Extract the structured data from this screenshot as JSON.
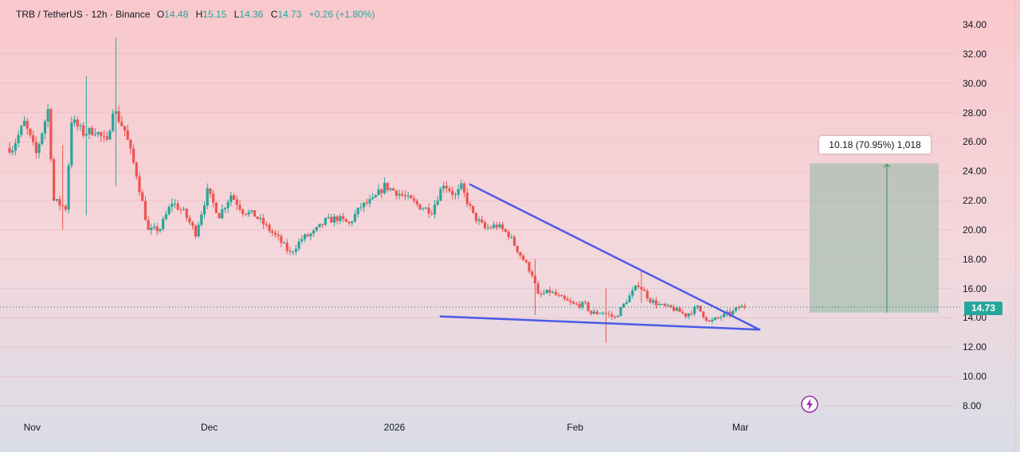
{
  "header": {
    "symbol": "TRB / TetherUS · 12h · Binance",
    "open_label": "O",
    "open": "14.48",
    "high_label": "H",
    "high": "15.15",
    "low_label": "L",
    "low": "14.36",
    "close_label": "C",
    "close": "14.73",
    "change": "+0.26 (+1.80%)"
  },
  "price_axis": [
    "34.00",
    "32.00",
    "30.00",
    "28.00",
    "26.00",
    "24.00",
    "22.00",
    "20.00",
    "18.00",
    "16.00",
    "14.00",
    "12.00",
    "10.00",
    "8.00"
  ],
  "time_axis": [
    "Nov",
    "Dec",
    "2026",
    "Feb",
    "Mar"
  ],
  "current_price": "14.73",
  "measure": {
    "label": "10.18 (70.95%) 1,018"
  },
  "colors": {
    "up": "#26a69a",
    "down": "#ef5350",
    "trendline": "#4a5be6",
    "target_box": "#8fb8a4",
    "bg_top": "#f9c9cd",
    "bg_bottom": "#d9dde6"
  },
  "icons": {
    "bolt": "bolt-icon"
  },
  "chart_data": {
    "type": "candlestick",
    "interval": "12h",
    "ylim": [
      7.2,
      35.2
    ],
    "x_ticks": [
      "Nov",
      "Dec",
      "2026",
      "Feb",
      "Mar"
    ],
    "last_close": 14.73,
    "close_path": [
      [
        "2025-10-29",
        25.6
      ],
      [
        "2025-10-31",
        27.3
      ],
      [
        "2025-11-02",
        25.2
      ],
      [
        "2025-11-04",
        28.2
      ],
      [
        "2025-11-05",
        22.0
      ],
      [
        "2025-11-07",
        21.5
      ],
      [
        "2025-11-08",
        27.5
      ],
      [
        "2025-11-10",
        26.6
      ],
      [
        "2025-11-12",
        26.8
      ],
      [
        "2025-11-14",
        25.9
      ],
      [
        "2025-11-15",
        28.3
      ],
      [
        "2025-11-17",
        26.8
      ],
      [
        "2025-11-19",
        23.8
      ],
      [
        "2025-11-21",
        19.9
      ],
      [
        "2025-11-23",
        20.1
      ],
      [
        "2025-11-25",
        21.9
      ],
      [
        "2025-11-27",
        21.2
      ],
      [
        "2025-11-29",
        19.8
      ],
      [
        "2025-12-01",
        22.6
      ],
      [
        "2025-12-03",
        21.0
      ],
      [
        "2025-12-05",
        22.4
      ],
      [
        "2025-12-07",
        21.3
      ],
      [
        "2025-12-09",
        21.0
      ],
      [
        "2025-12-11",
        20.2
      ],
      [
        "2025-12-13",
        19.4
      ],
      [
        "2025-12-15",
        18.4
      ],
      [
        "2025-12-17",
        19.4
      ],
      [
        "2025-12-19",
        19.8
      ],
      [
        "2025-12-21",
        20.6
      ],
      [
        "2025-12-23",
        20.8
      ],
      [
        "2025-12-25",
        20.4
      ],
      [
        "2025-12-27",
        21.6
      ],
      [
        "2025-12-29",
        22.0
      ],
      [
        "2025-12-31",
        23.0
      ],
      [
        "2026-01-02",
        22.6
      ],
      [
        "2026-01-04",
        22.1
      ],
      [
        "2026-01-06",
        21.6
      ],
      [
        "2026-01-08",
        21.3
      ],
      [
        "2026-01-10",
        23.2
      ],
      [
        "2026-01-12",
        22.3
      ],
      [
        "2026-01-13",
        22.9
      ],
      [
        "2026-01-15",
        21.0
      ],
      [
        "2026-01-17",
        20.1
      ],
      [
        "2026-01-19",
        20.3
      ],
      [
        "2026-01-21",
        19.7
      ],
      [
        "2026-01-23",
        18.3
      ],
      [
        "2026-01-25",
        17.0
      ],
      [
        "2026-01-26",
        15.5
      ],
      [
        "2026-01-28",
        15.8
      ],
      [
        "2026-01-30",
        15.3
      ],
      [
        "2026-02-01",
        14.9
      ],
      [
        "2026-02-03",
        14.9
      ],
      [
        "2026-02-04",
        14.3
      ],
      [
        "2026-02-06",
        14.4
      ],
      [
        "2026-02-08",
        14.0
      ],
      [
        "2026-02-10",
        15.2
      ],
      [
        "2026-02-12",
        16.3
      ],
      [
        "2026-02-14",
        15.2
      ],
      [
        "2026-02-16",
        14.8
      ],
      [
        "2026-02-18",
        14.6
      ],
      [
        "2026-02-20",
        14.2
      ],
      [
        "2026-02-22",
        14.7
      ],
      [
        "2026-02-24",
        13.7
      ],
      [
        "2026-02-26",
        14.1
      ],
      [
        "2026-02-28",
        14.4
      ],
      [
        "2026-03-01",
        14.73
      ]
    ],
    "annotations": [
      {
        "type": "trendline",
        "name": "upper",
        "from": [
          "2026-01-14",
          23.1
        ],
        "to": [
          "2026-03-04",
          13.2
        ]
      },
      {
        "type": "trendline",
        "name": "lower",
        "from": [
          "2026-01-09",
          14.1
        ],
        "to": [
          "2026-03-04",
          13.2
        ]
      },
      {
        "type": "price_range",
        "from_price": 14.36,
        "to_price": 24.54,
        "label": "10.18 (70.95%) 1,018"
      }
    ]
  }
}
